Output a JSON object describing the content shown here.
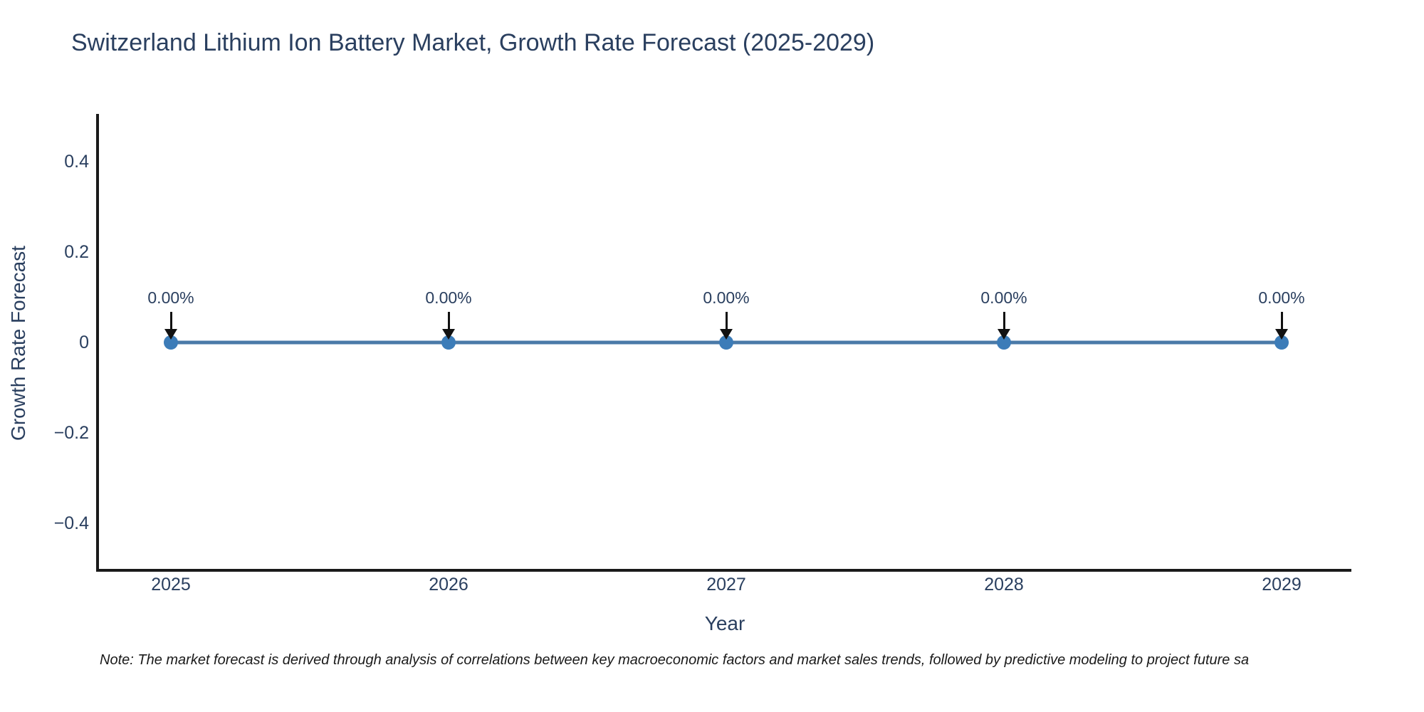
{
  "note": "Note: The market forecast is derived through analysis of correlations between key macroeconomic factors and market sales trends, followed by predictive modeling to project future sa",
  "chart_data": {
    "type": "line",
    "title": "Switzerland Lithium Ion Battery Market, Growth Rate Forecast (2025-2029)",
    "xlabel": "Year",
    "ylabel": "Growth Rate Forecast",
    "x": [
      2025,
      2026,
      2027,
      2028,
      2029
    ],
    "series": [
      {
        "name": "Growth Rate Forecast",
        "values": [
          0,
          0,
          0,
          0,
          0
        ]
      }
    ],
    "point_labels": [
      "0.00%",
      "0.00%",
      "0.00%",
      "0.00%",
      "0.00%"
    ],
    "xtick_labels": [
      "2025",
      "2026",
      "2027",
      "2028",
      "2029"
    ],
    "yticks": [
      0.4,
      0.2,
      0,
      -0.2,
      -0.4
    ],
    "ytick_labels": [
      "0.4",
      "0.2",
      "0",
      "−0.2",
      "−0.4"
    ],
    "ylim": [
      -0.504,
      0.506
    ],
    "grid": false,
    "legend_position": "none",
    "annotation_style": "black arrow pointing down at each data point"
  },
  "colors": {
    "line": "#4a7aa8",
    "marker": "#3c7cb8",
    "axis": "#1a1a1a",
    "label_text": "#2a3f5f",
    "arrow": "#111111",
    "note_text": "#1a1a1a",
    "background": "#ffffff"
  }
}
